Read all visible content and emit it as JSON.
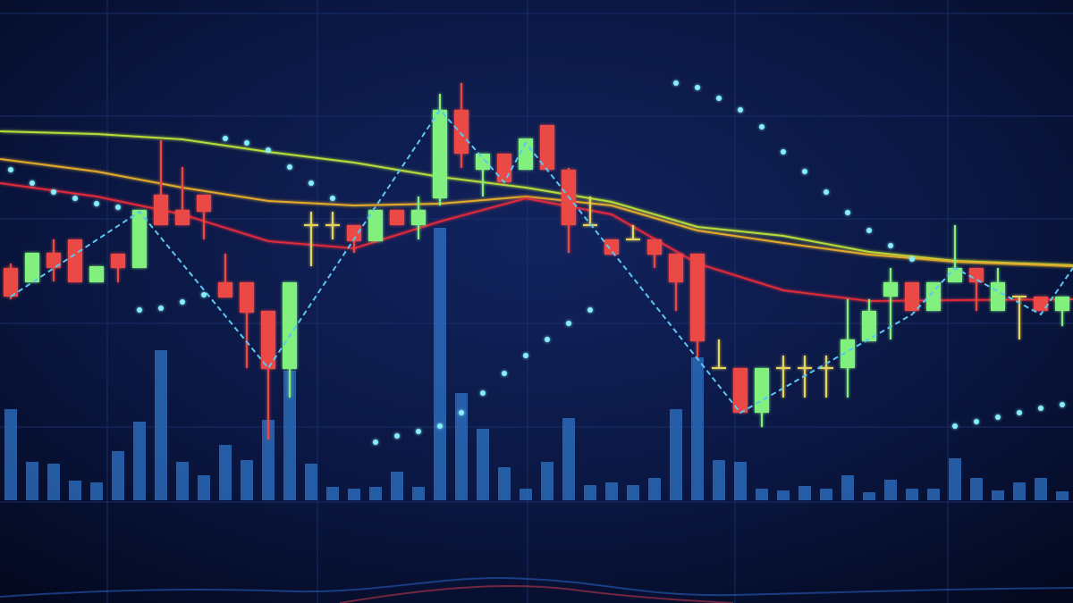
{
  "chart_data": {
    "type": "candlestick",
    "xlim": [
      -0.5,
      49.5
    ],
    "ylim": [
      0,
      120
    ],
    "volume_lim": [
      0,
      560
    ],
    "up_color": "#82f07e",
    "down_color": "#ea4a44",
    "doji_color": "#e6d45c",
    "volume_color": "#2f74c8",
    "open": [
      60,
      56.8,
      63.4,
      66.4,
      56.8,
      63.2,
      60,
      76.4,
      73,
      76.4,
      56.8,
      56.8,
      50.4,
      37.4,
      69.6,
      69.6,
      69.6,
      66,
      73,
      69.6,
      75.6,
      95.4,
      82,
      85.6,
      82,
      92,
      82,
      69.6,
      66.4,
      66.4,
      66.4,
      63.2,
      63.2,
      37.6,
      37.6,
      27.6,
      37.6,
      37.6,
      37.6,
      37.6,
      43.6,
      53.6,
      56.8,
      50.4,
      56.8,
      60,
      50.4,
      53.6,
      53.6,
      50.4
    ],
    "high": [
      61,
      63.4,
      66.4,
      66.4,
      60.4,
      63.2,
      73,
      88.6,
      82.6,
      76.4,
      63.2,
      56.8,
      50.4,
      56.8,
      72.6,
      72.6,
      69.6,
      73,
      73,
      76,
      99,
      101.4,
      85.6,
      85.6,
      89,
      92,
      82.4,
      76,
      66.4,
      69.6,
      66.4,
      63.2,
      63.2,
      44,
      37.6,
      37.6,
      40.4,
      40.4,
      40.4,
      53,
      53,
      60,
      56.8,
      56.8,
      69.6,
      60,
      60,
      53.6,
      53.6,
      53.6
    ],
    "low": [
      53,
      56.8,
      57,
      56.8,
      56.8,
      56.8,
      60,
      69.6,
      69.6,
      66.4,
      53.4,
      37.6,
      21.6,
      31,
      60.4,
      66.4,
      63.4,
      66,
      69.6,
      66.4,
      74,
      82.4,
      76,
      79.2,
      82,
      82,
      63.4,
      69.6,
      63,
      66.4,
      60,
      50.4,
      40,
      37.6,
      27.6,
      24.4,
      31,
      31,
      31,
      31,
      43.6,
      44,
      50.4,
      50.4,
      56.8,
      50.4,
      50.4,
      44,
      50.4,
      47
    ],
    "close": [
      53.6,
      63.4,
      60,
      56.8,
      60.4,
      60,
      73,
      69.6,
      69.6,
      72.6,
      53.4,
      50,
      37.4,
      56.8,
      69.6,
      69.6,
      66,
      73,
      69.6,
      73,
      95.4,
      85.6,
      85.6,
      79.2,
      89,
      82,
      69.6,
      69.6,
      63,
      66.4,
      63,
      56.8,
      43.6,
      37.6,
      27.6,
      37.6,
      37.6,
      37.6,
      37.6,
      44,
      50.4,
      56.8,
      50.4,
      56.8,
      60,
      56.8,
      56.8,
      53.6,
      50.4,
      53.6
    ],
    "volume": [
      102,
      43,
      41,
      22,
      20,
      55,
      88,
      168,
      43,
      28,
      62,
      45,
      90,
      145,
      41,
      15,
      13,
      15,
      32,
      15,
      305,
      120,
      80,
      37,
      13,
      43,
      92,
      17,
      20,
      17,
      25,
      102,
      160,
      45,
      43,
      13,
      11,
      16,
      13,
      28,
      9,
      23,
      13,
      13,
      47,
      25,
      11,
      20,
      25,
      10
    ],
    "lines": [
      {
        "color": "#b6dc3a",
        "x": [
          -0.5,
          4,
          8,
          12,
          16,
          20,
          24,
          28,
          32,
          36,
          40,
          44,
          49.5
        ],
        "values": [
          90.6,
          90,
          88.8,
          86,
          83.6,
          80.4,
          78,
          74.8,
          69.2,
          67.2,
          63.6,
          61.6,
          60.6
        ]
      },
      {
        "color": "#e2aa2c",
        "x": [
          -0.5,
          4,
          8,
          12,
          16,
          20,
          24,
          28,
          32,
          36,
          40,
          44,
          49.5
        ],
        "values": [
          84.4,
          81.6,
          78,
          75,
          74,
          74.4,
          76,
          74,
          68.4,
          65.6,
          63,
          61.4,
          60.4
        ]
      },
      {
        "color": "#e02a3a",
        "x": [
          -0.5,
          4,
          8,
          12,
          16,
          20,
          24,
          28,
          32,
          36,
          40,
          44,
          49.5
        ],
        "values": [
          79,
          76,
          72,
          66,
          64.4,
          70.4,
          75.6,
          72,
          61,
          55,
          52.6,
          52.8,
          53
        ]
      }
    ],
    "sar": {
      "color": "#86eefa",
      "x": [
        0,
        1,
        2,
        3,
        4,
        5,
        6,
        7,
        8,
        9,
        10,
        11,
        12,
        13,
        14,
        15,
        17,
        18,
        19,
        20,
        21,
        22,
        23,
        24,
        25,
        26,
        27,
        31,
        32,
        33,
        34,
        35,
        36,
        37,
        38,
        39,
        40,
        41,
        42,
        44,
        45,
        46,
        47,
        48,
        49
      ],
      "values": [
        82,
        79,
        77,
        75.6,
        74.4,
        73.6,
        50.6,
        51,
        52.4,
        54,
        89,
        88,
        86.4,
        82.6,
        79,
        75.6,
        21,
        22.4,
        23.4,
        24.6,
        27.6,
        32,
        36.4,
        40.4,
        44,
        47.6,
        50.6,
        101.4,
        100.4,
        98,
        95.4,
        91.6,
        86,
        81.6,
        77,
        72.4,
        68.4,
        65,
        62,
        24.6,
        25.6,
        26.6,
        27.6,
        28.6,
        29.4
      ]
    },
    "zigzag": {
      "color": "#5cc6f2",
      "x": [
        0,
        6,
        12,
        20,
        23,
        24,
        34,
        42,
        44,
        48,
        49.5
      ],
      "values": [
        53.6,
        72.6,
        37.6,
        95.4,
        79.2,
        88,
        27.6,
        49.6,
        60,
        49.6,
        60
      ]
    }
  }
}
